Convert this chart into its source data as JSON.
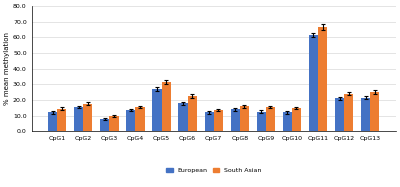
{
  "categories": [
    "CpG1",
    "CpG2",
    "CpG3",
    "CpG4",
    "CpG5",
    "CpG6",
    "CpG7",
    "CpG8",
    "CpG9",
    "CpG10",
    "CpG11",
    "CpG12",
    "CpG13"
  ],
  "european": [
    12.0,
    15.5,
    8.0,
    13.5,
    27.0,
    18.0,
    12.0,
    14.0,
    12.5,
    12.0,
    61.5,
    21.0,
    21.5
  ],
  "south_asian": [
    14.5,
    17.5,
    9.5,
    15.5,
    31.5,
    22.5,
    13.5,
    16.0,
    15.5,
    15.0,
    66.5,
    24.0,
    25.0
  ],
  "european_err": [
    0.8,
    0.9,
    0.7,
    0.8,
    1.2,
    1.0,
    0.8,
    0.9,
    0.8,
    0.7,
    1.5,
    1.0,
    1.0
  ],
  "south_asian_err": [
    0.9,
    1.0,
    0.7,
    0.9,
    1.3,
    1.1,
    0.8,
    1.0,
    0.9,
    0.8,
    1.8,
    1.1,
    1.2
  ],
  "european_color": "#4472C4",
  "south_asian_color": "#ED7D31",
  "ylabel": "% mean methylation",
  "ylim": [
    0,
    80
  ],
  "yticks": [
    0.0,
    10.0,
    20.0,
    30.0,
    40.0,
    50.0,
    60.0,
    70.0,
    80.0
  ],
  "legend_labels": [
    "European",
    "South Asian"
  ],
  "background_color": "#ffffff",
  "grid_color": "#d9d9d9"
}
